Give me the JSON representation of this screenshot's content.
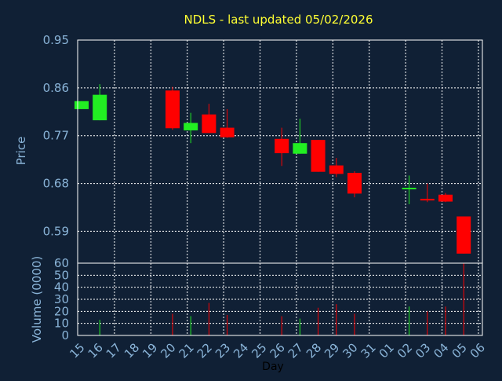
{
  "colors": {
    "background": "#102035",
    "title": "#ffff33",
    "axis_text": "#8ab4d8",
    "day_text": "#000000",
    "frame": "#ffffff",
    "grid": "#ffffff",
    "up": "#22ee22",
    "down": "#ff0000"
  },
  "chart_data": [
    {
      "type": "candlestick",
      "title": "NDLS - last updated 05/02/2026",
      "ylabel": "Price",
      "ylim": [
        0.53,
        0.95
      ],
      "yticks": [
        "0.95",
        "0.86",
        "0.77",
        "0.68",
        "0.59"
      ],
      "grid": true,
      "x": [
        "15",
        "16",
        "17",
        "18",
        "19",
        "20",
        "21",
        "22",
        "23",
        "24",
        "25",
        "26",
        "27",
        "28",
        "29",
        "30",
        "31",
        "01",
        "02",
        "03",
        "04",
        "05",
        "06"
      ],
      "candles": [
        {
          "x": "15",
          "open": 0.82,
          "high": 0.835,
          "low": 0.82,
          "close": 0.835
        },
        {
          "x": "16",
          "open": 0.799,
          "high": 0.867,
          "low": 0.799,
          "close": 0.847
        },
        {
          "x": "20",
          "open": 0.855,
          "high": 0.862,
          "low": 0.781,
          "close": 0.784
        },
        {
          "x": "21",
          "open": 0.78,
          "high": 0.813,
          "low": 0.756,
          "close": 0.794
        },
        {
          "x": "22",
          "open": 0.81,
          "high": 0.83,
          "low": 0.775,
          "close": 0.775
        },
        {
          "x": "23",
          "open": 0.785,
          "high": 0.82,
          "low": 0.766,
          "close": 0.767
        },
        {
          "x": "26",
          "open": 0.764,
          "high": 0.785,
          "low": 0.713,
          "close": 0.737
        },
        {
          "x": "27",
          "open": 0.736,
          "high": 0.802,
          "low": 0.736,
          "close": 0.756
        },
        {
          "x": "28",
          "open": 0.762,
          "high": 0.762,
          "low": 0.702,
          "close": 0.702
        },
        {
          "x": "29",
          "open": 0.714,
          "high": 0.728,
          "low": 0.692,
          "close": 0.698
        },
        {
          "x": "30",
          "open": 0.7,
          "high": 0.703,
          "low": 0.654,
          "close": 0.661
        },
        {
          "x": "02",
          "open": 0.67,
          "high": 0.695,
          "low": 0.641,
          "close": 0.672
        },
        {
          "x": "03",
          "open": 0.651,
          "high": 0.68,
          "low": 0.645,
          "close": 0.649
        },
        {
          "x": "04",
          "open": 0.659,
          "high": 0.662,
          "low": 0.645,
          "close": 0.646
        },
        {
          "x": "05",
          "open": 0.618,
          "high": 0.618,
          "low": 0.548,
          "close": 0.548
        }
      ]
    },
    {
      "type": "bar",
      "xlabel": "Day",
      "ylabel": "Volume (0000)",
      "ylim": [
        0,
        60
      ],
      "yticks": [
        "60",
        "50",
        "40",
        "30",
        "20",
        "10",
        "0"
      ],
      "categories": [
        "15",
        "16",
        "17",
        "18",
        "19",
        "20",
        "21",
        "22",
        "23",
        "24",
        "25",
        "26",
        "27",
        "28",
        "29",
        "30",
        "31",
        "01",
        "02",
        "03",
        "04",
        "05",
        "06"
      ],
      "values": [
        0,
        13,
        0,
        0,
        0,
        18,
        16,
        27,
        17,
        0,
        0,
        16,
        14,
        23,
        26,
        18,
        0,
        0,
        24,
        20,
        24,
        60,
        0
      ],
      "directions": [
        "",
        "up",
        "",
        "",
        "",
        "down",
        "up",
        "down",
        "down",
        "",
        "",
        "down",
        "up",
        "down",
        "down",
        "down",
        "",
        "",
        "up",
        "down",
        "down",
        "down",
        ""
      ]
    }
  ]
}
